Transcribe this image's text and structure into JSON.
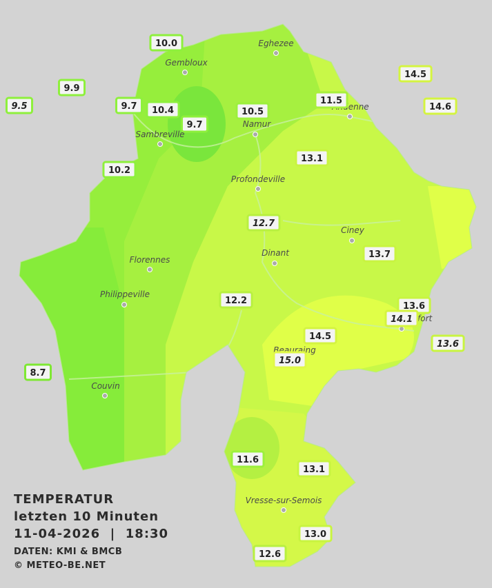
{
  "map": {
    "stations": [
      {
        "label": "10.0",
        "italic": false,
        "color": "#8ef03c"
      },
      {
        "label": "9.9",
        "italic": false,
        "color": "#8ef03c"
      },
      {
        "label": "9.5",
        "italic": true,
        "color": "#8ef03c"
      },
      {
        "label": "9.7",
        "italic": false,
        "color": "#8ef03c"
      },
      {
        "label": "10.4",
        "italic": false,
        "color": "#8ef03c"
      },
      {
        "label": "9.7",
        "italic": false,
        "color": "#8ef03c"
      },
      {
        "label": "10.5",
        "italic": false,
        "color": "#9cf03c"
      },
      {
        "label": "11.5",
        "italic": false,
        "color": "#a8f03c"
      },
      {
        "label": "14.5",
        "italic": false,
        "color": "#d4f440"
      },
      {
        "label": "14.6",
        "italic": false,
        "color": "#d4f440"
      },
      {
        "label": "10.2",
        "italic": false,
        "color": "#8ef03c"
      },
      {
        "label": "13.1",
        "italic": false,
        "color": "#c8f440"
      },
      {
        "label": "12.7",
        "italic": true,
        "color": "#b8f040"
      },
      {
        "label": "13.7",
        "italic": false,
        "color": "#c8f440"
      },
      {
        "label": "12.2",
        "italic": false,
        "color": "#b8f040"
      },
      {
        "label": "13.6",
        "italic": false,
        "color": "#c8f440"
      },
      {
        "label": "14.1",
        "italic": true,
        "color": "#d4f440"
      },
      {
        "label": "14.5",
        "italic": false,
        "color": "#d4f440"
      },
      {
        "label": "13.6",
        "italic": true,
        "color": "#c8f440"
      },
      {
        "label": "15.0",
        "italic": true,
        "color": "#e0f848"
      },
      {
        "label": "8.7",
        "italic": false,
        "color": "#7ee832"
      },
      {
        "label": "11.6",
        "italic": false,
        "color": "#9cf03c"
      },
      {
        "label": "13.1",
        "italic": false,
        "color": "#c8f440"
      },
      {
        "label": "13.0",
        "italic": false,
        "color": "#c8f440"
      },
      {
        "label": "12.6",
        "italic": false,
        "color": "#b8f040"
      }
    ],
    "cities": [
      {
        "name": "Eghezee"
      },
      {
        "name": "Gembloux"
      },
      {
        "name": "Andenne"
      },
      {
        "name": "Namur"
      },
      {
        "name": "Sambreville"
      },
      {
        "name": "Profondeville"
      },
      {
        "name": "Ciney"
      },
      {
        "name": "Dinant"
      },
      {
        "name": "Florennes"
      },
      {
        "name": "Philippeville"
      },
      {
        "name": "Rochefort"
      },
      {
        "name": "Beauraing"
      },
      {
        "name": "Couvin"
      },
      {
        "name": "Vresse-sur-Semois"
      }
    ],
    "legend": {
      "title": "TEMPERATUR",
      "subtitle": "letzten 10 Minuten",
      "datetime": "11-04-2026  |  18:30",
      "source": "DATEN: KMI & BMCB",
      "copyright": "© METEO-BE.NET"
    }
  }
}
